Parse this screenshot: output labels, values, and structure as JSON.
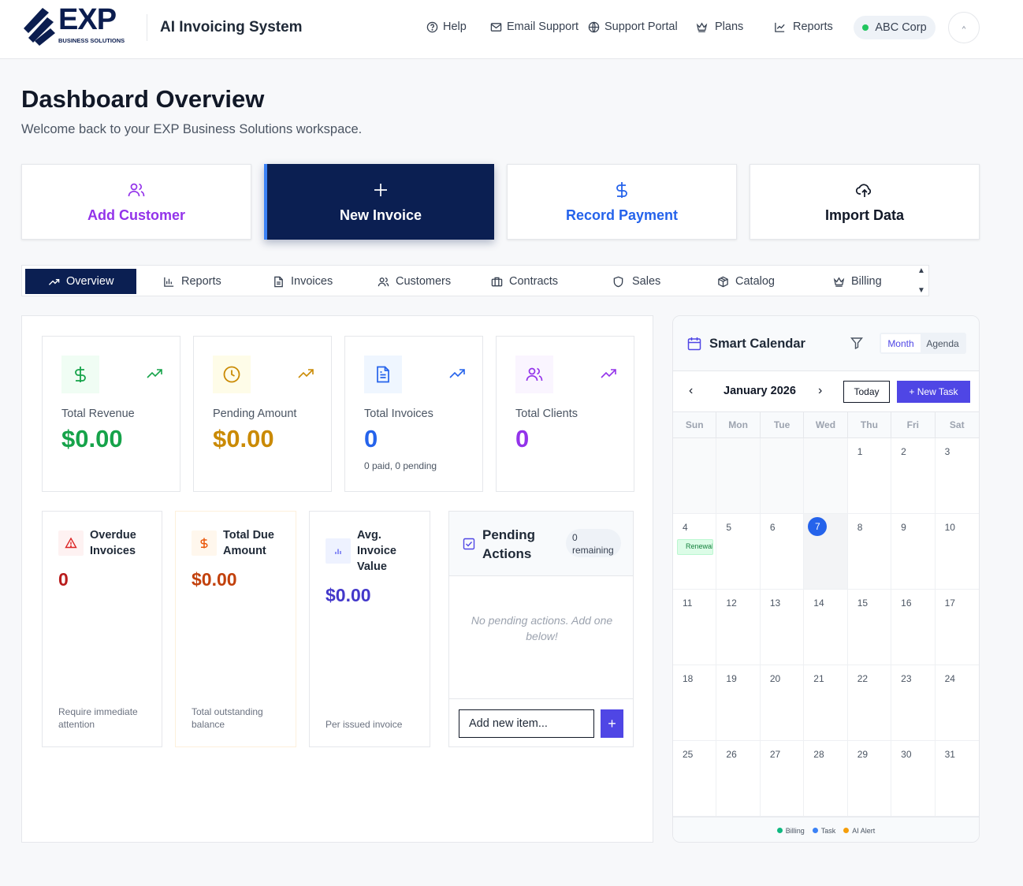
{
  "brand": {
    "logo_text": "EXP",
    "logo_sub": "BUSINESS SOLUTIONS",
    "app_title": "AI Invoicing System"
  },
  "nav": [
    {
      "label": "Help",
      "icon": "help-circle-icon"
    },
    {
      "label": "Email Support",
      "icon": "mail-icon"
    },
    {
      "label": "Support Portal",
      "icon": "globe-icon"
    },
    {
      "label": "Plans",
      "icon": "crown-icon"
    },
    {
      "label": "Reports",
      "icon": "line-chart-icon"
    }
  ],
  "org": {
    "name": "ABC Corp",
    "status_color": "#22c55e"
  },
  "page": {
    "title": "Dashboard Overview",
    "subtitle": "Welcome back to your EXP Business Solutions workspace."
  },
  "actions": [
    {
      "label": "Add Customer",
      "icon": "users-icon",
      "color": "#9333ea"
    },
    {
      "label": "New Invoice",
      "icon": "plus-icon",
      "color": "#ffffff"
    },
    {
      "label": "Record Payment",
      "icon": "dollar-icon",
      "color": "#2563eb"
    },
    {
      "label": "Import Data",
      "icon": "cloud-upload-icon",
      "color": "#111827"
    }
  ],
  "tabs": [
    {
      "label": "Overview",
      "icon": "trending-up-icon",
      "active": true
    },
    {
      "label": "Reports",
      "icon": "bar-chart-icon"
    },
    {
      "label": "Invoices",
      "icon": "file-text-icon"
    },
    {
      "label": "Customers",
      "icon": "users-icon"
    },
    {
      "label": "Contracts",
      "icon": "briefcase-icon"
    },
    {
      "label": "Sales",
      "icon": "shield-icon"
    },
    {
      "label": "Catalog",
      "icon": "box-icon"
    },
    {
      "label": "Billing",
      "icon": "crown-icon"
    }
  ],
  "stats": [
    {
      "label": "Total Revenue",
      "value": "$0.00",
      "note": "",
      "color": "#16a34a",
      "bg": "#f0fdf4",
      "icon": "dollar-icon"
    },
    {
      "label": "Pending Amount",
      "value": "$0.00",
      "note": "",
      "color": "#ca8a04",
      "bg": "#fefce8",
      "icon": "clock-icon"
    },
    {
      "label": "Total Invoices",
      "value": "0",
      "note": "0 paid, 0 pending",
      "color": "#2563eb",
      "bg": "#eff6ff",
      "icon": "file-text-icon"
    },
    {
      "label": "Total Clients",
      "value": "0",
      "note": "",
      "color": "#9333ea",
      "bg": "#faf5ff",
      "icon": "users-icon"
    }
  ],
  "minis": [
    {
      "title": "Overdue Invoices",
      "value": "0",
      "note": "Require immediate attention",
      "color": "#b91c1c",
      "bg": "#fef2f2",
      "icon": "alert-triangle-icon"
    },
    {
      "title": "Total Due Amount",
      "value": "$0.00",
      "note": "Total outstanding balance",
      "color": "#c2410c",
      "bg": "#fff7ed",
      "icon": "dollar-icon"
    },
    {
      "title": "Avg. Invoice Value",
      "value": "$0.00",
      "note": "Per issued invoice",
      "color": "#4338ca",
      "bg": "#eef2ff",
      "icon": "bar-chart-icon"
    }
  ],
  "pending": {
    "title": "Pending Actions",
    "badge": "0 remaining",
    "empty": "No pending actions. Add one below!",
    "input_value": "Add new item...",
    "add_label": "+"
  },
  "calendar": {
    "title": "Smart Calendar",
    "views": [
      "Month",
      "Agenda"
    ],
    "month_label": "January 2026",
    "today_label": "Today",
    "new_task_label": "+ New Task",
    "weekdays": [
      "Sun",
      "Mon",
      "Tue",
      "Wed",
      "Thu",
      "Fri",
      "Sat"
    ],
    "leading_blanks": 4,
    "days_in_month": 31,
    "today": 7,
    "events": [
      {
        "day": 4,
        "label": "Renewal",
        "color": "#15803d"
      }
    ],
    "legend": [
      {
        "label": "Billing",
        "color": "#10b981"
      },
      {
        "label": "Task",
        "color": "#3b82f6"
      },
      {
        "label": "AI Alert",
        "color": "#f59e0b"
      }
    ]
  }
}
